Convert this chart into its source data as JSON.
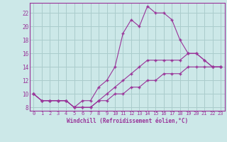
{
  "background_color": "#cce8e8",
  "grid_color": "#aacccc",
  "line_color": "#993399",
  "marker": "+",
  "xlabel": "Windchill (Refroidissement éolien,°C)",
  "xlim": [
    -0.5,
    23.5
  ],
  "ylim": [
    7.5,
    23.5
  ],
  "yticks": [
    8,
    10,
    12,
    14,
    16,
    18,
    20,
    22
  ],
  "xticks": [
    0,
    1,
    2,
    3,
    4,
    5,
    6,
    7,
    8,
    9,
    10,
    11,
    12,
    13,
    14,
    15,
    16,
    17,
    18,
    19,
    20,
    21,
    22,
    23
  ],
  "lines": [
    {
      "x": [
        0,
        1,
        2,
        3,
        4,
        5,
        6,
        7,
        8,
        9,
        10,
        11,
        12,
        13,
        14,
        15,
        16,
        17,
        18,
        19,
        20,
        21,
        22,
        23
      ],
      "y": [
        10,
        9,
        9,
        9,
        9,
        8,
        9,
        9,
        11,
        12,
        14,
        19,
        21,
        20,
        23,
        22,
        22,
        21,
        18,
        16,
        16,
        15,
        14,
        14
      ]
    },
    {
      "x": [
        0,
        1,
        2,
        3,
        4,
        5,
        6,
        7,
        8,
        9,
        10,
        11,
        12,
        13,
        14,
        15,
        16,
        17,
        18,
        19,
        20,
        21,
        22,
        23
      ],
      "y": [
        10,
        9,
        9,
        9,
        9,
        8,
        8,
        8,
        9,
        10,
        11,
        12,
        13,
        14,
        15,
        15,
        15,
        15,
        15,
        16,
        16,
        15,
        14,
        14
      ]
    },
    {
      "x": [
        0,
        1,
        2,
        3,
        4,
        5,
        6,
        7,
        8,
        9,
        10,
        11,
        12,
        13,
        14,
        15,
        16,
        17,
        18,
        19,
        20,
        21,
        22,
        23
      ],
      "y": [
        10,
        9,
        9,
        9,
        9,
        8,
        8,
        8,
        9,
        9,
        10,
        10,
        11,
        11,
        12,
        12,
        13,
        13,
        13,
        14,
        14,
        14,
        14,
        14
      ]
    }
  ]
}
